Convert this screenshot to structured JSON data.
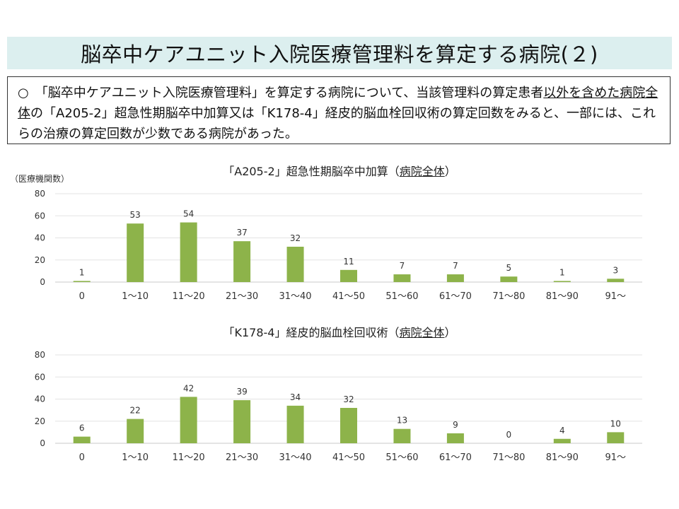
{
  "page": {
    "title": "脳卒中ケアユニット入院医療管理料を算定する病院(２)",
    "summary": {
      "bullet": "○",
      "part1": "「脳卒中ケアユニット入院医療管理料」を算定する病院について、当該管理料の算定患者",
      "underlined": "以外を含めた病院全体",
      "part2": "の「A205-2」超急性期脳卒中加算又は「K178-4」経皮的脳血栓回収術の算定回数をみると、一部には、これらの治療の算定回数が少数である病院があった。"
    },
    "y_axis_label": "（医療機関数）"
  },
  "chart_data": [
    {
      "type": "bar",
      "title_prefix": "「A205-2」超急性期脳卒中加算（",
      "title_underlined": "病院全体",
      "title_suffix": "）",
      "categories": [
        "0",
        "1～10",
        "11～20",
        "21～30",
        "31～40",
        "41～50",
        "51～60",
        "61～70",
        "71～80",
        "81～90",
        "91～"
      ],
      "values": [
        1,
        53,
        54,
        37,
        32,
        11,
        7,
        7,
        5,
        1,
        3
      ],
      "ylim": [
        0,
        80
      ],
      "yticks": [
        "0",
        "20",
        "40",
        "60",
        "80"
      ],
      "grid": true,
      "bar_color": "#8db34a"
    },
    {
      "type": "bar",
      "title_prefix": "「K178-4」経皮的脳血栓回収術（",
      "title_underlined": "病院全体",
      "title_suffix": "）",
      "categories": [
        "0",
        "1～10",
        "11～20",
        "21～30",
        "31～40",
        "41～50",
        "51～60",
        "61～70",
        "71～80",
        "81～90",
        "91～"
      ],
      "values": [
        6,
        22,
        42,
        39,
        34,
        32,
        13,
        9,
        0,
        4,
        10
      ],
      "ylim": [
        0,
        80
      ],
      "yticks": [
        "0",
        "20",
        "40",
        "60",
        "80"
      ],
      "grid": true,
      "bar_color": "#8db34a"
    }
  ]
}
